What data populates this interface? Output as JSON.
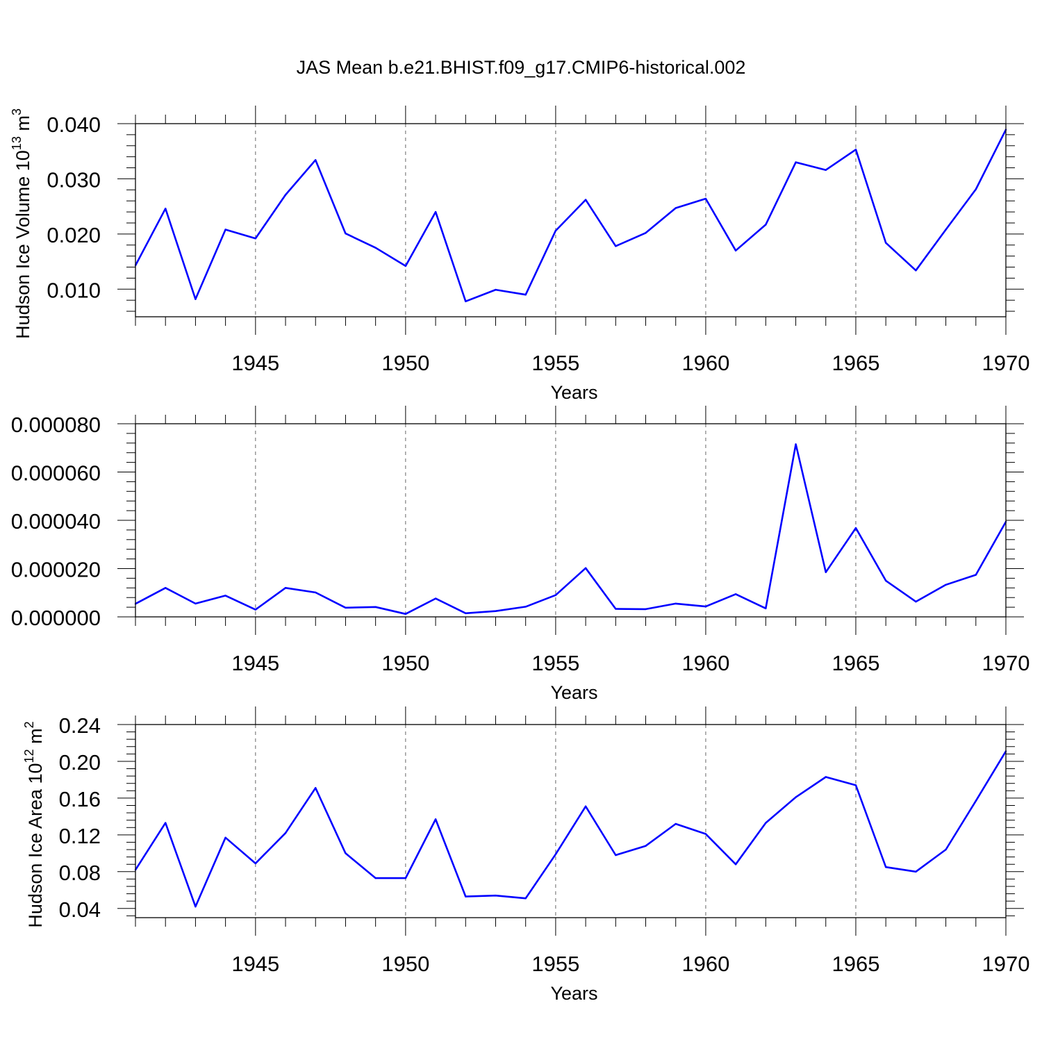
{
  "title": "JAS Mean b.e21.BHIST.f09_g17.CMIP6-historical.002",
  "line_color": "#0000ff",
  "chart_data": [
    {
      "type": "line",
      "title": "JAS Mean b.e21.BHIST.f09_g17.CMIP6-historical.002",
      "ylabel": "Hudson Ice Volume 10",
      "ylabel_sup": "13",
      "ylabel_unit": " m",
      "ylabel_unit_sup": "3",
      "xlabel": "Years",
      "xlim": [
        1941,
        1970
      ],
      "ylim": [
        0.005,
        0.04
      ],
      "yticks": [
        0.01,
        0.02,
        0.03,
        0.04
      ],
      "ytick_labels": [
        "0.010",
        "0.020",
        "0.030",
        "0.040"
      ],
      "xticks": [
        1945,
        1950,
        1955,
        1960,
        1965,
        1970
      ],
      "xtick_labels": [
        "1945",
        "1950",
        "1955",
        "1960",
        "1965",
        "1970"
      ],
      "x": [
        1941,
        1942,
        1943,
        1944,
        1945,
        1946,
        1947,
        1948,
        1949,
        1950,
        1951,
        1952,
        1953,
        1954,
        1955,
        1956,
        1957,
        1958,
        1959,
        1960,
        1961,
        1962,
        1963,
        1964,
        1965,
        1966,
        1967,
        1968,
        1969,
        1970
      ],
      "values": [
        0.0143,
        0.0246,
        0.0082,
        0.0208,
        0.0192,
        0.0271,
        0.0334,
        0.0201,
        0.0175,
        0.0142,
        0.024,
        0.0078,
        0.0099,
        0.009,
        0.0206,
        0.0262,
        0.0178,
        0.0202,
        0.0247,
        0.0264,
        0.017,
        0.0217,
        0.033,
        0.0316,
        0.0353,
        0.0184,
        0.0134,
        0.0208,
        0.0281,
        0.0389
      ]
    },
    {
      "type": "line",
      "ylabel": "",
      "xlabel": "Years",
      "xlim": [
        1941,
        1970
      ],
      "ylim": [
        0.0,
        8e-05
      ],
      "yticks": [
        0.0,
        2e-05,
        4e-05,
        6e-05,
        8e-05
      ],
      "ytick_labels": [
        "0.000000",
        "0.000020",
        "0.000040",
        "0.000060",
        "0.000080"
      ],
      "xticks": [
        1945,
        1950,
        1955,
        1960,
        1965,
        1970
      ],
      "xtick_labels": [
        "1945",
        "1950",
        "1955",
        "1960",
        "1965",
        "1970"
      ],
      "x": [
        1941,
        1942,
        1943,
        1944,
        1945,
        1946,
        1947,
        1948,
        1949,
        1950,
        1951,
        1952,
        1953,
        1954,
        1955,
        1956,
        1957,
        1958,
        1959,
        1960,
        1961,
        1962,
        1963,
        1964,
        1965,
        1966,
        1967,
        1968,
        1969,
        1970
      ],
      "values": [
        5.4e-06,
        1.2e-05,
        5.5e-06,
        8.8e-06,
        3e-06,
        1.2e-05,
        1.01e-05,
        3.8e-06,
        4.1e-06,
        1.2e-06,
        7.6e-06,
        1.5e-06,
        2.4e-06,
        4.2e-06,
        9e-06,
        2.02e-05,
        3.3e-06,
        3.2e-06,
        5.5e-06,
        4.3e-06,
        9.4e-06,
        3.5e-06,
        7.15e-05,
        1.85e-05,
        3.68e-05,
        1.5e-05,
        6.3e-06,
        1.33e-05,
        1.74e-05,
        3.94e-05
      ]
    },
    {
      "type": "line",
      "ylabel": "Hudson Ice Area 10",
      "ylabel_sup": "12",
      "ylabel_unit": " m",
      "ylabel_unit_sup": "2",
      "xlabel": "Years",
      "xlim": [
        1941,
        1970
      ],
      "ylim": [
        0.03,
        0.24
      ],
      "yticks": [
        0.04,
        0.08,
        0.12,
        0.16,
        0.2,
        0.24
      ],
      "ytick_labels": [
        "0.04",
        "0.08",
        "0.12",
        "0.16",
        "0.20",
        "0.24"
      ],
      "xticks": [
        1945,
        1950,
        1955,
        1960,
        1965,
        1970
      ],
      "xtick_labels": [
        "1945",
        "1950",
        "1955",
        "1960",
        "1965",
        "1970"
      ],
      "x": [
        1941,
        1942,
        1943,
        1944,
        1945,
        1946,
        1947,
        1948,
        1949,
        1950,
        1951,
        1952,
        1953,
        1954,
        1955,
        1956,
        1957,
        1958,
        1959,
        1960,
        1961,
        1962,
        1963,
        1964,
        1965,
        1966,
        1967,
        1968,
        1969,
        1970
      ],
      "values": [
        0.082,
        0.133,
        0.042,
        0.117,
        0.089,
        0.122,
        0.171,
        0.1,
        0.073,
        0.073,
        0.137,
        0.053,
        0.054,
        0.051,
        0.099,
        0.151,
        0.098,
        0.108,
        0.132,
        0.121,
        0.088,
        0.133,
        0.161,
        0.183,
        0.174,
        0.085,
        0.08,
        0.104,
        0.157,
        0.211
      ]
    }
  ]
}
